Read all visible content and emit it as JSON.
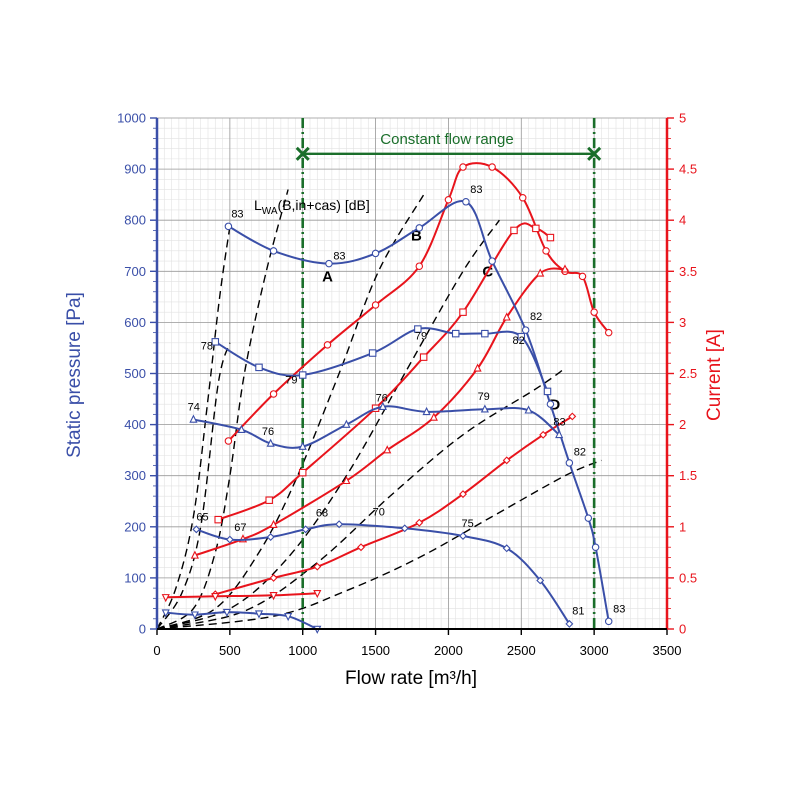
{
  "chart_data": {
    "type": "line",
    "xlabel": "Flow rate [m³/h]",
    "ylabel_left": "Static pressure [Pa]",
    "ylabel_right": "Current [A]",
    "xlim": [
      0,
      3500
    ],
    "ylim_left": [
      0,
      1000
    ],
    "ylim_right": [
      0,
      5
    ],
    "x_ticks": [
      0,
      500,
      1000,
      1500,
      2000,
      2500,
      3000,
      3500
    ],
    "y_left_ticks": [
      0,
      100,
      200,
      300,
      400,
      500,
      600,
      700,
      800,
      900,
      1000
    ],
    "y_right_ticks": [
      0,
      0.5,
      1,
      1.5,
      2,
      2.5,
      3,
      3.5,
      4,
      4.5,
      5
    ],
    "grid": true,
    "constant_flow_range": {
      "label": "Constant flow range",
      "x_start": 1000,
      "x_end": 3000,
      "y": 930
    },
    "lwa_label": {
      "main": "L",
      "sub": "WA",
      "rest": "(B,in+cas) [dB]",
      "x": 680,
      "y": 830
    },
    "colors": {
      "pressure": "#3a4fa8",
      "current": "#e8141c",
      "system": "#000000",
      "range": "#1a6e2a",
      "axis_left": "#3a4fa8",
      "axis_right": "#e8141c"
    },
    "pressure_series": [
      {
        "marker": "circle",
        "points": [
          [
            490,
            788
          ],
          [
            800,
            740
          ],
          [
            1180,
            715
          ],
          [
            1500,
            735
          ],
          [
            1800,
            785
          ],
          [
            2120,
            836
          ],
          [
            2300,
            720
          ],
          [
            2530,
            585
          ],
          [
            2700,
            440
          ],
          [
            2830,
            325
          ],
          [
            2960,
            217
          ],
          [
            3010,
            160
          ],
          [
            3100,
            15
          ]
        ]
      },
      {
        "marker": "square",
        "points": [
          [
            400,
            562
          ],
          [
            700,
            512
          ],
          [
            1000,
            497
          ],
          [
            1480,
            540
          ],
          [
            1790,
            587
          ],
          [
            2050,
            578
          ],
          [
            2250,
            578
          ],
          [
            2500,
            572
          ],
          [
            2680,
            465
          ]
        ]
      },
      {
        "marker": "triangle-up",
        "points": [
          [
            250,
            410
          ],
          [
            580,
            390
          ],
          [
            780,
            363
          ],
          [
            1000,
            357
          ],
          [
            1300,
            400
          ],
          [
            1550,
            435
          ],
          [
            1850,
            425
          ],
          [
            2250,
            430
          ],
          [
            2550,
            428
          ],
          [
            2760,
            380
          ]
        ]
      },
      {
        "marker": "diamond",
        "points": [
          [
            270,
            195
          ],
          [
            500,
            175
          ],
          [
            780,
            180
          ],
          [
            1020,
            195
          ],
          [
            1250,
            205
          ],
          [
            1700,
            197
          ],
          [
            2100,
            182
          ],
          [
            2400,
            158
          ],
          [
            2630,
            95
          ],
          [
            2830,
            10
          ]
        ]
      },
      {
        "marker": "triangle-down",
        "points": [
          [
            60,
            32
          ],
          [
            260,
            28
          ],
          [
            480,
            33
          ],
          [
            700,
            30
          ],
          [
            900,
            25
          ],
          [
            1100,
            0
          ]
        ]
      }
    ],
    "current_series": [
      {
        "marker": "circle",
        "points": [
          [
            490,
            1.84
          ],
          [
            800,
            2.3
          ],
          [
            1170,
            2.78
          ],
          [
            1500,
            3.17
          ],
          [
            1800,
            3.55
          ],
          [
            2000,
            4.2
          ],
          [
            2100,
            4.52
          ],
          [
            2300,
            4.52
          ],
          [
            2510,
            4.22
          ],
          [
            2670,
            3.7
          ],
          [
            2800,
            3.5
          ],
          [
            2920,
            3.45
          ],
          [
            3000,
            3.1
          ],
          [
            3100,
            2.9
          ]
        ]
      },
      {
        "marker": "square",
        "points": [
          [
            420,
            1.07
          ],
          [
            770,
            1.26
          ],
          [
            1000,
            1.53
          ],
          [
            1500,
            2.16
          ],
          [
            1830,
            2.66
          ],
          [
            2100,
            3.1
          ],
          [
            2450,
            3.9
          ],
          [
            2600,
            3.92
          ],
          [
            2700,
            3.83
          ]
        ]
      },
      {
        "marker": "triangle-up",
        "points": [
          [
            260,
            0.72
          ],
          [
            590,
            0.88
          ],
          [
            800,
            1.02
          ],
          [
            1300,
            1.45
          ],
          [
            1580,
            1.75
          ],
          [
            1900,
            2.07
          ],
          [
            2200,
            2.55
          ],
          [
            2400,
            3.05
          ],
          [
            2630,
            3.48
          ],
          [
            2800,
            3.52
          ]
        ]
      },
      {
        "marker": "diamond",
        "points": [
          [
            400,
            0.34
          ],
          [
            800,
            0.5
          ],
          [
            1100,
            0.61
          ],
          [
            1400,
            0.8
          ],
          [
            1800,
            1.04
          ],
          [
            2100,
            1.32
          ],
          [
            2400,
            1.65
          ],
          [
            2650,
            1.9
          ],
          [
            2850,
            2.08
          ]
        ]
      },
      {
        "marker": "triangle-down",
        "points": [
          [
            60,
            0.31
          ],
          [
            400,
            0.32
          ],
          [
            800,
            0.33
          ],
          [
            1100,
            0.35
          ]
        ]
      }
    ],
    "system_curves": [
      {
        "label": "A",
        "label_pos": [
          1170,
          680
        ],
        "points": [
          [
            0,
            0
          ],
          [
            250,
            40
          ],
          [
            400,
            150
          ],
          [
            500,
            300
          ],
          [
            600,
            500
          ],
          [
            750,
            700
          ],
          [
            900,
            860
          ]
        ]
      },
      {
        "label": "B",
        "label_pos": [
          1780,
          760
        ],
        "points": [
          [
            0,
            0
          ],
          [
            400,
            40
          ],
          [
            700,
            150
          ],
          [
            950,
            290
          ],
          [
            1250,
            500
          ],
          [
            1520,
            700
          ],
          [
            1830,
            850
          ]
        ]
      },
      {
        "label": "C",
        "label_pos": [
          2270,
          690
        ],
        "points": [
          [
            0,
            0
          ],
          [
            500,
            40
          ],
          [
            900,
            140
          ],
          [
            1300,
            300
          ],
          [
            1700,
            500
          ],
          [
            2100,
            700
          ],
          [
            2350,
            800
          ]
        ]
      },
      {
        "label": "D",
        "label_pos": [
          2730,
          430
        ],
        "points": [
          [
            0,
            0
          ],
          [
            600,
            35
          ],
          [
            1100,
            130
          ],
          [
            1600,
            260
          ],
          [
            2100,
            380
          ],
          [
            2600,
            470
          ],
          [
            2800,
            510
          ]
        ]
      },
      {
        "label": "",
        "label_pos": null,
        "points": [
          [
            0,
            0
          ],
          [
            800,
            25
          ],
          [
            1300,
            75
          ],
          [
            1800,
            140
          ],
          [
            2300,
            220
          ],
          [
            2800,
            300
          ],
          [
            3050,
            330
          ]
        ]
      }
    ],
    "dashed_from_origin": [
      {
        "points": [
          [
            0,
            0
          ],
          [
            130,
            80
          ],
          [
            250,
            220
          ],
          [
            350,
            450
          ],
          [
            430,
            650
          ],
          [
            500,
            788
          ]
        ]
      },
      {
        "points": [
          [
            0,
            0
          ],
          [
            170,
            70
          ],
          [
            300,
            200
          ],
          [
            420,
            480
          ],
          [
            500,
            560
          ]
        ]
      }
    ],
    "annotations": [
      {
        "text": "83",
        "x": 510,
        "y": 805
      },
      {
        "text": "83",
        "x": 1210,
        "y": 723
      },
      {
        "text": "83",
        "x": 2150,
        "y": 853
      },
      {
        "text": "82",
        "x": 2560,
        "y": 605
      },
      {
        "text": "82",
        "x": 2440,
        "y": 558
      },
      {
        "text": "79",
        "x": 1770,
        "y": 567
      },
      {
        "text": "79",
        "x": 880,
        "y": 480
      },
      {
        "text": "78",
        "x": 300,
        "y": 547
      },
      {
        "text": "76",
        "x": 1500,
        "y": 445
      },
      {
        "text": "79",
        "x": 2200,
        "y": 448
      },
      {
        "text": "83",
        "x": 2720,
        "y": 398
      },
      {
        "text": "74",
        "x": 210,
        "y": 428
      },
      {
        "text": "76",
        "x": 720,
        "y": 380
      },
      {
        "text": "82",
        "x": 2860,
        "y": 340
      },
      {
        "text": "65",
        "x": 270,
        "y": 212
      },
      {
        "text": "67",
        "x": 530,
        "y": 192
      },
      {
        "text": "68",
        "x": 1090,
        "y": 220
      },
      {
        "text": "70",
        "x": 1480,
        "y": 222
      },
      {
        "text": "75",
        "x": 2090,
        "y": 200
      },
      {
        "text": "81",
        "x": 2850,
        "y": 28
      },
      {
        "text": "83",
        "x": 3130,
        "y": 32
      }
    ]
  }
}
